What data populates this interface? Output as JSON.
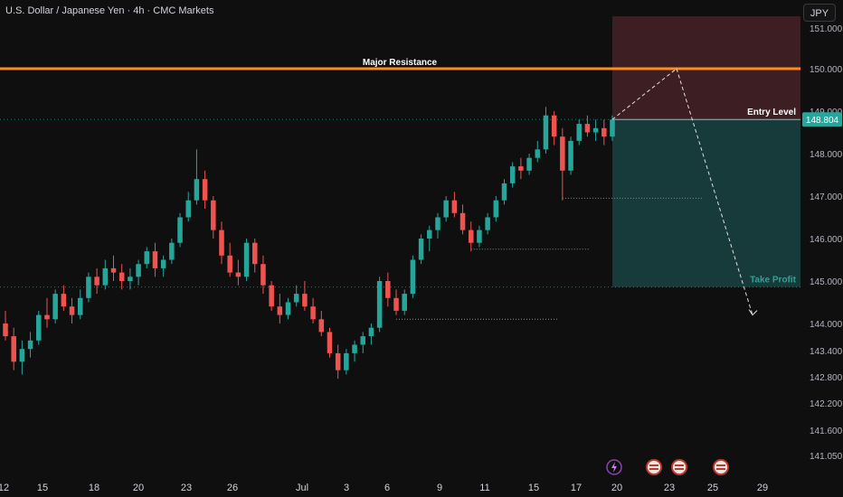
{
  "header": {
    "title": "U.S. Dollar / Japanese Yen · 4h · CMC Markets",
    "currency_button": "JPY"
  },
  "colors": {
    "background": "#0f0f0f",
    "up": "#26a69a",
    "down": "#ef5350",
    "resistance": "#ff8c1a",
    "stop_zone": "#3d1e22",
    "target_zone": "#173a3a",
    "current_price_badge": "#26a69a"
  },
  "chart_data": {
    "type": "candlestick",
    "symbol": "USDJPY",
    "timeframe": "4h",
    "ylim": [
      140.85,
      151.25
    ],
    "y_ticks": [
      "151.000",
      "150.000",
      "149.000",
      "148.000",
      "147.000",
      "146.000",
      "145.000",
      "144.000",
      "143.400",
      "142.800",
      "142.200",
      "141.600",
      "141.050"
    ],
    "x_ticks": [
      "12",
      "15",
      "18",
      "20",
      "23",
      "26",
      "Jul",
      "3",
      "6",
      "9",
      "11",
      "15",
      "17",
      "20",
      "23",
      "25",
      "29"
    ],
    "current_price": "148.804",
    "annotations": {
      "resistance": {
        "label": "Major Resistance",
        "price": 150.0
      },
      "entry": {
        "label": "Entry Level",
        "price": 148.804
      },
      "take_profit": {
        "label": "Take Profit",
        "price": 144.86
      },
      "stop_zone_top": 151.25
    },
    "projection": [
      {
        "step": 0,
        "price": 148.804
      },
      {
        "step": 1,
        "price": 150.0
      },
      {
        "step": 2,
        "price": 144.2
      }
    ],
    "candles": [
      [
        144.0,
        144.3,
        143.6,
        143.7
      ],
      [
        143.7,
        143.9,
        142.9,
        143.1
      ],
      [
        143.1,
        143.6,
        142.8,
        143.4
      ],
      [
        143.4,
        143.8,
        143.2,
        143.6
      ],
      [
        143.6,
        144.3,
        143.5,
        144.2
      ],
      [
        144.2,
        144.6,
        143.9,
        144.1
      ],
      [
        144.1,
        144.8,
        144.0,
        144.7
      ],
      [
        144.7,
        144.9,
        144.3,
        144.4
      ],
      [
        144.4,
        144.6,
        144.0,
        144.2
      ],
      [
        144.2,
        144.8,
        144.1,
        144.6
      ],
      [
        144.6,
        145.2,
        144.5,
        145.1
      ],
      [
        145.1,
        145.3,
        144.7,
        144.9
      ],
      [
        144.9,
        145.5,
        144.8,
        145.3
      ],
      [
        145.3,
        145.6,
        145.0,
        145.2
      ],
      [
        145.2,
        145.4,
        144.8,
        145.0
      ],
      [
        145.0,
        145.3,
        144.8,
        145.1
      ],
      [
        145.1,
        145.5,
        144.9,
        145.4
      ],
      [
        145.4,
        145.8,
        145.3,
        145.7
      ],
      [
        145.7,
        145.9,
        145.1,
        145.3
      ],
      [
        145.3,
        145.6,
        145.1,
        145.5
      ],
      [
        145.5,
        146.0,
        145.4,
        145.9
      ],
      [
        145.9,
        146.6,
        145.8,
        146.5
      ],
      [
        146.5,
        147.1,
        146.4,
        146.9
      ],
      [
        146.9,
        148.1,
        146.8,
        147.4
      ],
      [
        147.4,
        147.6,
        146.7,
        146.9
      ],
      [
        146.9,
        147.0,
        146.0,
        146.2
      ],
      [
        146.2,
        146.4,
        145.4,
        145.6
      ],
      [
        145.6,
        145.9,
        145.1,
        145.2
      ],
      [
        145.2,
        145.5,
        144.9,
        145.1
      ],
      [
        145.1,
        146.0,
        145.0,
        145.9
      ],
      [
        145.9,
        146.0,
        145.2,
        145.4
      ],
      [
        145.4,
        145.6,
        144.7,
        144.9
      ],
      [
        144.9,
        145.0,
        144.3,
        144.4
      ],
      [
        144.4,
        144.7,
        144.0,
        144.2
      ],
      [
        144.2,
        144.6,
        144.1,
        144.5
      ],
      [
        144.5,
        144.9,
        144.4,
        144.7
      ],
      [
        144.7,
        145.0,
        144.3,
        144.4
      ],
      [
        144.4,
        144.6,
        144.0,
        144.1
      ],
      [
        144.1,
        144.3,
        143.7,
        143.8
      ],
      [
        143.8,
        143.9,
        143.2,
        143.3
      ],
      [
        143.3,
        143.5,
        142.7,
        142.9
      ],
      [
        142.9,
        143.4,
        142.8,
        143.3
      ],
      [
        143.3,
        143.6,
        143.1,
        143.5
      ],
      [
        143.5,
        143.8,
        143.3,
        143.7
      ],
      [
        143.7,
        144.0,
        143.5,
        143.9
      ],
      [
        143.9,
        145.1,
        143.8,
        145.0
      ],
      [
        145.0,
        145.2,
        144.4,
        144.6
      ],
      [
        144.6,
        144.8,
        144.2,
        144.3
      ],
      [
        144.3,
        144.8,
        144.2,
        144.7
      ],
      [
        144.7,
        145.6,
        144.6,
        145.5
      ],
      [
        145.5,
        146.1,
        145.4,
        146.0
      ],
      [
        146.0,
        146.3,
        145.7,
        146.2
      ],
      [
        146.2,
        146.6,
        146.0,
        146.5
      ],
      [
        146.5,
        147.0,
        146.4,
        146.9
      ],
      [
        146.9,
        147.1,
        146.5,
        146.6
      ],
      [
        146.6,
        146.8,
        146.1,
        146.2
      ],
      [
        146.2,
        146.4,
        145.7,
        145.9
      ],
      [
        145.9,
        146.3,
        145.8,
        146.2
      ],
      [
        146.2,
        146.6,
        146.1,
        146.5
      ],
      [
        146.5,
        147.0,
        146.4,
        146.9
      ],
      [
        146.9,
        147.4,
        146.8,
        147.3
      ],
      [
        147.3,
        147.8,
        147.2,
        147.7
      ],
      [
        147.7,
        147.9,
        147.4,
        147.6
      ],
      [
        147.6,
        148.0,
        147.5,
        147.9
      ],
      [
        147.9,
        148.3,
        147.8,
        148.1
      ],
      [
        148.1,
        149.1,
        148.0,
        148.9
      ],
      [
        148.9,
        149.0,
        148.2,
        148.4
      ],
      [
        148.4,
        148.6,
        146.9,
        147.6
      ],
      [
        147.6,
        148.4,
        147.5,
        148.3
      ],
      [
        148.3,
        148.8,
        148.2,
        148.7
      ],
      [
        148.7,
        148.9,
        148.4,
        148.5
      ],
      [
        148.5,
        148.8,
        148.3,
        148.6
      ],
      [
        148.6,
        148.8,
        148.2,
        148.4
      ],
      [
        148.4,
        148.9,
        148.3,
        148.8
      ]
    ]
  }
}
